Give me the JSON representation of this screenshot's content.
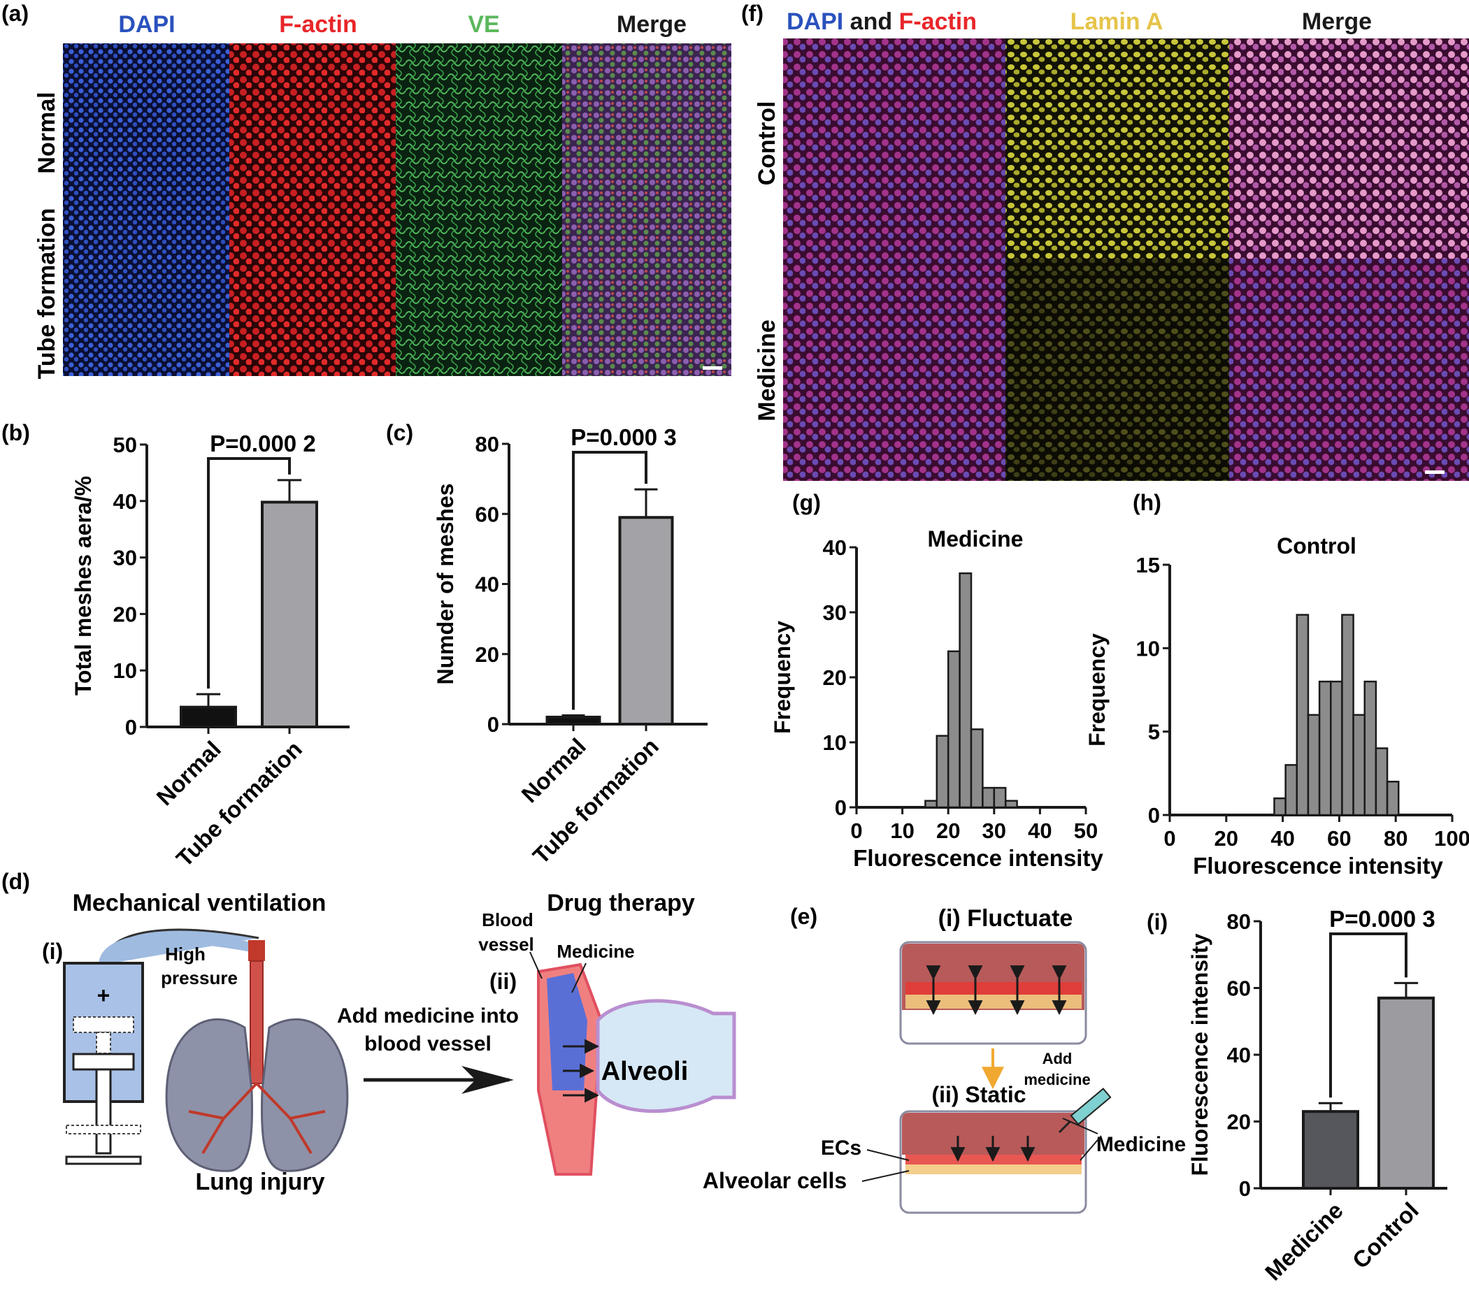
{
  "colors": {
    "dapi": "#2a52be",
    "factin": "#e8262a",
    "ve": "#5cb85c",
    "lamin": "#e6c44a",
    "black": "#1a1a1a",
    "bar_dark": "#111111",
    "bar_gray": "#a3a3a7",
    "bar_dark_gray": "#55575c",
    "bar_light_gray": "#9b9ba0",
    "hist_gray": "#8c8c8c"
  },
  "panel_a": {
    "letter": "(a)",
    "col_headers": [
      "DAPI",
      "F-actin",
      "VE",
      "Merge"
    ],
    "row_headers": [
      "Normal",
      "Tube formation"
    ]
  },
  "panel_f": {
    "letter": "(f)",
    "col1_a": "DAPI",
    "col1_b": " and ",
    "col1_c": "F-actin",
    "col2": "Lamin A",
    "col3": "Merge",
    "row_headers": [
      "Control",
      "Medicine"
    ]
  },
  "panel_b": {
    "letter": "(b)",
    "chart_data": {
      "type": "bar",
      "categories": [
        "Normal",
        "Tube formation"
      ],
      "values": [
        3.5,
        39.8
      ],
      "errors": [
        2.3,
        3.9
      ],
      "ylabel": "Total meshes aera/%",
      "ylim": [
        0,
        50
      ],
      "yticks": [
        "0",
        "10",
        "20",
        "30",
        "40",
        "50"
      ],
      "annotation": "P=0.000 2"
    }
  },
  "panel_c": {
    "letter": "(c)",
    "chart_data": {
      "type": "bar",
      "categories": [
        "Normal",
        "Tube formation"
      ],
      "values": [
        2,
        59
      ],
      "errors": [
        0.5,
        8
      ],
      "ylabel": "Numder of meshes",
      "ylim": [
        0,
        80
      ],
      "yticks": [
        "0",
        "20",
        "40",
        "60",
        "80"
      ],
      "annotation": "P=0.000 3"
    }
  },
  "panel_g": {
    "letter": "(g)",
    "chart_data": {
      "type": "bar",
      "title": "Medicine",
      "xlabel": "Fluorescence intensity",
      "ylabel": "Frequency",
      "xlim": [
        0,
        50
      ],
      "ylim": [
        0,
        40
      ],
      "xticks": [
        "0",
        "10",
        "20",
        "30",
        "40",
        "50"
      ],
      "yticks": [
        "0",
        "10",
        "20",
        "30",
        "40"
      ],
      "bin_width": 2.5,
      "bins": [
        {
          "x": 15,
          "count": 1
        },
        {
          "x": 17.5,
          "count": 11
        },
        {
          "x": 20,
          "count": 24
        },
        {
          "x": 22.5,
          "count": 36
        },
        {
          "x": 25,
          "count": 12
        },
        {
          "x": 27.5,
          "count": 3
        },
        {
          "x": 30,
          "count": 3
        },
        {
          "x": 32.5,
          "count": 1
        }
      ]
    }
  },
  "panel_h": {
    "letter": "(h)",
    "chart_data": {
      "type": "bar",
      "title": "Control",
      "xlabel": "Fluorescence intensity",
      "ylabel": "Frequency",
      "xlim": [
        0,
        100
      ],
      "ylim": [
        0,
        15
      ],
      "xticks": [
        "0",
        "20",
        "40",
        "60",
        "80",
        "100"
      ],
      "yticks": [
        "0",
        "5",
        "10",
        "15"
      ],
      "bin_width": 4,
      "bins": [
        {
          "x": 37,
          "count": 1
        },
        {
          "x": 41,
          "count": 3
        },
        {
          "x": 45,
          "count": 12
        },
        {
          "x": 49,
          "count": 6
        },
        {
          "x": 53,
          "count": 8
        },
        {
          "x": 57,
          "count": 8
        },
        {
          "x": 61,
          "count": 12
        },
        {
          "x": 65,
          "count": 6
        },
        {
          "x": 69,
          "count": 8
        },
        {
          "x": 73,
          "count": 4
        },
        {
          "x": 77,
          "count": 2
        }
      ]
    }
  },
  "panel_i": {
    "letter": "(i)",
    "chart_data": {
      "type": "bar",
      "categories": [
        "Medicine",
        "Control"
      ],
      "values": [
        23,
        57
      ],
      "errors": [
        2.5,
        4.5
      ],
      "ylabel": "Fluorescence intensity",
      "ylim": [
        0,
        80
      ],
      "yticks": [
        "0",
        "20",
        "40",
        "60",
        "80"
      ],
      "annotation": "P=0.000 3"
    }
  },
  "panel_d": {
    "letter": "(d)",
    "title_left": "Mechanical ventilation",
    "title_right": "Drug therapy",
    "sub_i": "(i)",
    "sub_ii": "(ii)",
    "plus": "+",
    "high_pressure": [
      "High",
      "pressure"
    ],
    "lung_injury": "Lung injury",
    "add_medicine": [
      "Add medicine into",
      "blood vessel"
    ],
    "blood_vessel": [
      "Blood",
      "vessel"
    ],
    "medicine": "Medicine",
    "alveoli": "Alveoli"
  },
  "panel_e": {
    "letter": "(e)",
    "fluctuate": "(i) Fluctuate",
    "static": "(ii) Static",
    "add_medicine": [
      "Add",
      "medicine"
    ],
    "medicine": "Medicine",
    "ecs": "ECs",
    "alveolar_cells": "Alveolar cells"
  }
}
